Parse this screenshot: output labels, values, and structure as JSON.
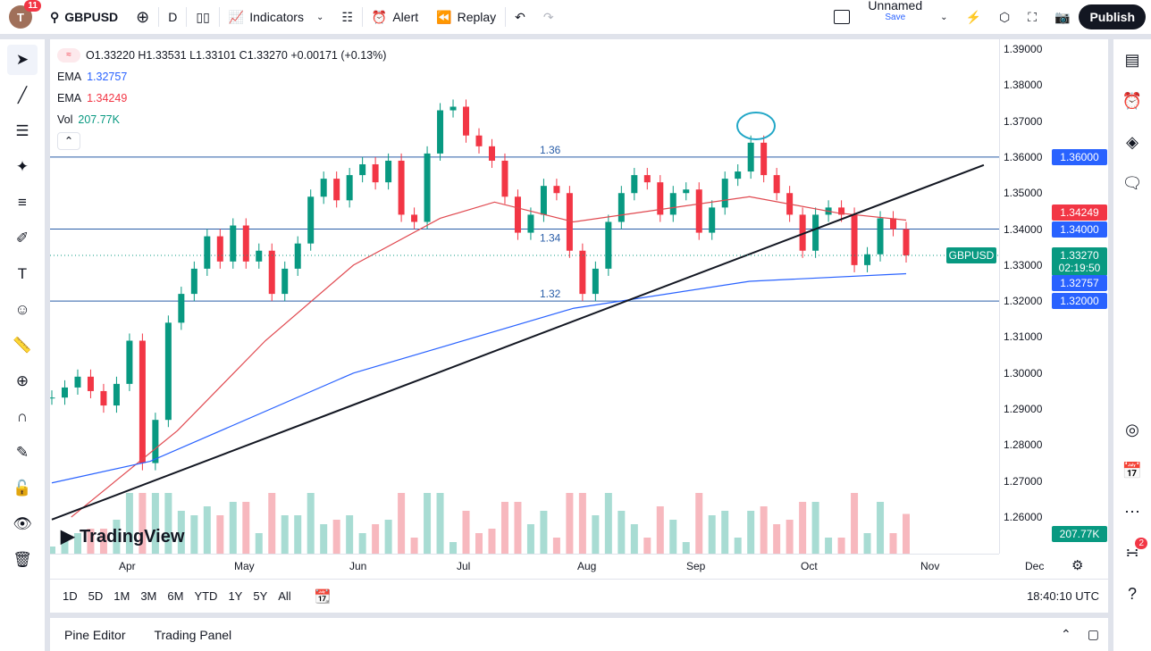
{
  "header": {
    "avatar_letter": "T",
    "notifications": "11",
    "symbol": "GBPUSD",
    "interval": "D",
    "indicators": "Indicators",
    "alert": "Alert",
    "replay": "Replay",
    "layout_name": "Unnamed",
    "save": "Save",
    "publish": "Publish"
  },
  "legend": {
    "ohlc": "O1.33220 H1.33531 L1.33101 C1.33270 +0.00171 (+0.13%)",
    "ema1_label": "EMA",
    "ema1_value": "1.32757",
    "ema2_label": "EMA",
    "ema2_value": "1.34249",
    "vol_label": "Vol",
    "vol_value": "207.77K"
  },
  "price_axis": {
    "ticks": [
      "1.39000",
      "1.38000",
      "1.37000",
      "1.36000",
      "1.35000",
      "1.34000",
      "1.33000",
      "1.32000",
      "1.31000",
      "1.30000",
      "1.29000",
      "1.28000",
      "1.27000",
      "1.26000"
    ],
    "labels": {
      "ema_red": "1.34249",
      "level_134": "1.34000",
      "level_136": "1.36000",
      "symbol": "GBPUSD",
      "last": "1.33270",
      "countdown": "02:19:50",
      "ema_blue": "1.32757",
      "level_132": "1.32000",
      "volume": "207.77K"
    }
  },
  "time_axis": {
    "ticks": [
      "Apr",
      "May",
      "Jun",
      "Jul",
      "Aug",
      "Sep",
      "Oct",
      "Nov",
      "Dec"
    ]
  },
  "colors": {
    "up": "#089981",
    "down": "#f23645",
    "ema_fast": "#e0484f",
    "ema_slow": "#2962ff",
    "level": "#2a5ea8",
    "accent": "#2962ff"
  },
  "chart_data": {
    "type": "candlestick",
    "symbol": "GBPUSD",
    "interval": "D",
    "ylim": [
      1.255,
      1.392
    ],
    "approx_closes": [
      1.2932,
      1.296,
      1.299,
      1.295,
      1.291,
      1.297,
      1.309,
      1.275,
      1.287,
      1.314,
      1.322,
      1.329,
      1.338,
      1.331,
      1.341,
      1.331,
      1.334,
      1.322,
      1.329,
      1.336,
      1.349,
      1.354,
      1.348,
      1.355,
      1.358,
      1.353,
      1.359,
      1.344,
      1.342,
      1.361,
      1.373,
      1.374,
      1.366,
      1.363,
      1.359,
      1.349,
      1.339,
      1.344,
      1.352,
      1.35,
      1.334,
      1.322,
      1.329,
      1.342,
      1.35,
      1.355,
      1.353,
      1.344,
      1.35,
      1.351,
      1.339,
      1.346,
      1.354,
      1.356,
      1.364,
      1.355,
      1.35,
      1.344,
      1.334,
      1.344,
      1.346,
      1.344,
      1.33,
      1.333,
      1.343,
      1.34,
      1.3327
    ],
    "ema_red_points": [
      [
        1.5,
        1.26
      ],
      [
        9.7,
        1.284
      ],
      [
        16.5,
        1.309
      ],
      [
        23.3,
        1.33
      ],
      [
        30,
        1.343
      ],
      [
        34.2,
        1.3475
      ],
      [
        40.3,
        1.342
      ],
      [
        47.1,
        1.3455
      ],
      [
        53.9,
        1.349
      ],
      [
        60.7,
        1.3445
      ],
      [
        66,
        1.3425
      ]
    ],
    "ema_blue_points": [
      [
        0,
        1.2695
      ],
      [
        7.6,
        1.2755
      ],
      [
        23.3,
        1.3
      ],
      [
        40.3,
        1.318
      ],
      [
        53.9,
        1.3255
      ],
      [
        66,
        1.3276
      ]
    ],
    "trendline": [
      [
        0,
        1.2593
      ],
      [
        72,
        1.3578
      ]
    ],
    "levels": [
      {
        "value": 1.36,
        "label": "1.36"
      },
      {
        "value": 1.34,
        "label": "1.34"
      },
      {
        "value": 1.32,
        "label": "1.32"
      }
    ]
  },
  "bottom": {
    "ranges": [
      "1D",
      "5D",
      "1M",
      "3M",
      "6M",
      "YTD",
      "1Y",
      "5Y",
      "All"
    ],
    "clock": "18:40:10 UTC"
  },
  "panels": {
    "pine": "Pine Editor",
    "trading": "Trading Panel"
  },
  "right": {
    "notif": "2"
  },
  "watermark": "TradingView"
}
